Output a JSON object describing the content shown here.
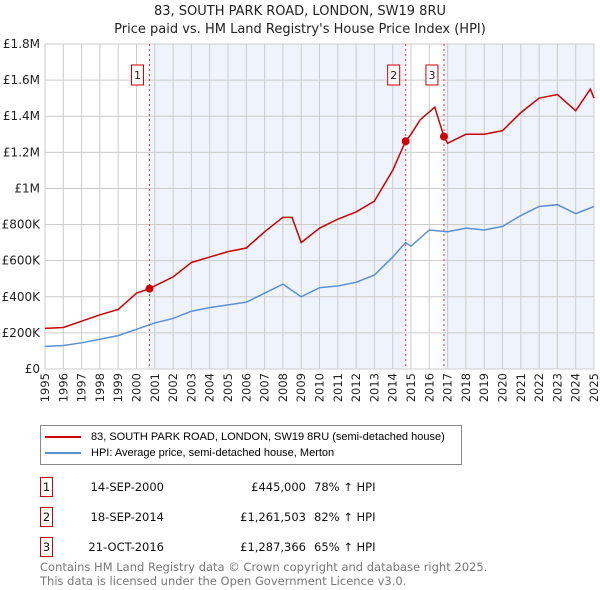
{
  "chart_data": {
    "type": "line",
    "title": "83, SOUTH PARK ROAD, LONDON, SW19 8RU",
    "subtitle": "Price paid vs. HM Land Registry's House Price Index (HPI)",
    "xlim": [
      1995,
      2025
    ],
    "ylim": [
      0,
      1800000
    ],
    "y_ticks": [
      {
        "v": 0,
        "label": "£0"
      },
      {
        "v": 200000,
        "label": "£200K"
      },
      {
        "v": 400000,
        "label": "£400K"
      },
      {
        "v": 600000,
        "label": "£600K"
      },
      {
        "v": 800000,
        "label": "£800K"
      },
      {
        "v": 1000000,
        "label": "£1M"
      },
      {
        "v": 1200000,
        "label": "£1.2M"
      },
      {
        "v": 1400000,
        "label": "£1.4M"
      },
      {
        "v": 1600000,
        "label": "£1.6M"
      },
      {
        "v": 1800000,
        "label": "£1.8M"
      }
    ],
    "x_ticks": [
      "1995",
      "1996",
      "1997",
      "1998",
      "1999",
      "2000",
      "2001",
      "2002",
      "2003",
      "2004",
      "2005",
      "2006",
      "2007",
      "2008",
      "2009",
      "2010",
      "2011",
      "2012",
      "2013",
      "2014",
      "2015",
      "2016",
      "2017",
      "2018",
      "2019",
      "2020",
      "2021",
      "2022",
      "2023",
      "2024",
      "2025"
    ],
    "grid": true,
    "series": [
      {
        "name": "83, SOUTH PARK ROAD, LONDON, SW19 8RU (semi-detached house)",
        "color": "#cc0000",
        "x": [
          1995,
          1996,
          1997,
          1998,
          1999,
          2000,
          2000.7,
          2001,
          2002,
          2003,
          2004,
          2005,
          2006,
          2007,
          2008,
          2008.5,
          2009,
          2010,
          2011,
          2012,
          2013,
          2014,
          2014.7,
          2015,
          2015.5,
          2016.3,
          2016.8,
          2017,
          2018,
          2019,
          2020,
          2021,
          2022,
          2023,
          2024,
          2024.8,
          2025
        ],
        "y": [
          225000,
          230000,
          265000,
          300000,
          330000,
          420000,
          445000,
          460000,
          510000,
          590000,
          620000,
          650000,
          670000,
          760000,
          840000,
          840000,
          700000,
          780000,
          830000,
          870000,
          930000,
          1100000,
          1261503,
          1300000,
          1380000,
          1450000,
          1287366,
          1250000,
          1300000,
          1300000,
          1320000,
          1420000,
          1500000,
          1520000,
          1430000,
          1550000,
          1500000
        ]
      },
      {
        "name": "HPI: Average price, semi-detached house, Merton",
        "color": "#5b8fd4",
        "x": [
          1995,
          1996,
          1997,
          1998,
          1999,
          2000,
          2001,
          2002,
          2003,
          2004,
          2005,
          2006,
          2007,
          2008,
          2009,
          2010,
          2011,
          2012,
          2013,
          2014,
          2014.7,
          2015,
          2016,
          2017,
          2018,
          2019,
          2020,
          2021,
          2022,
          2023,
          2024,
          2025
        ],
        "y": [
          125000,
          130000,
          145000,
          165000,
          185000,
          220000,
          255000,
          280000,
          320000,
          340000,
          355000,
          370000,
          420000,
          470000,
          400000,
          450000,
          460000,
          480000,
          520000,
          620000,
          700000,
          680000,
          770000,
          760000,
          780000,
          770000,
          790000,
          850000,
          900000,
          910000,
          860000,
          900000
        ]
      }
    ],
    "sales": [
      {
        "n": "1",
        "x": 2000.71,
        "price": 445000,
        "date": "14-SEP-2000",
        "price_label": "£445,000",
        "hpi": "78% ↑ HPI"
      },
      {
        "n": "2",
        "x": 2014.71,
        "price": 1261503,
        "date": "18-SEP-2014",
        "price_label": "£1,261,503",
        "hpi": "82% ↑ HPI"
      },
      {
        "n": "3",
        "x": 2016.8,
        "price": 1287366,
        "date": "21-OCT-2016",
        "price_label": "£1,287,366",
        "hpi": "65% ↑ HPI"
      }
    ]
  },
  "legend": {
    "red": "83, SOUTH PARK ROAD, LONDON, SW19 8RU (semi-detached house)",
    "blue": "HPI: Average price, semi-detached house, Merton"
  },
  "footer": {
    "line1": "Contains HM Land Registry data © Crown copyright and database right 2025.",
    "line2": "This data is licensed under the Open Government Licence v3.0."
  }
}
